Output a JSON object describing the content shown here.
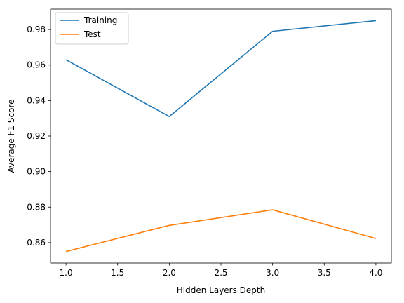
{
  "chart_data": {
    "type": "line",
    "title": "",
    "xlabel": "Hidden Layers Depth",
    "ylabel": "Average F1 Score",
    "xlim": [
      0.85,
      4.15
    ],
    "ylim": [
      0.8485,
      0.9915
    ],
    "x_ticks": [
      1.0,
      1.5,
      2.0,
      2.5,
      3.0,
      3.5,
      4.0
    ],
    "x_tick_labels": [
      "1.0",
      "1.5",
      "2.0",
      "2.5",
      "3.0",
      "3.5",
      "4.0"
    ],
    "y_ticks": [
      0.86,
      0.88,
      0.9,
      0.92,
      0.94,
      0.96,
      0.98
    ],
    "y_tick_labels": [
      "0.86",
      "0.88",
      "0.90",
      "0.92",
      "0.94",
      "0.96",
      "0.98"
    ],
    "grid": false,
    "legend": "top-left",
    "x": [
      1,
      2,
      3,
      4
    ],
    "series": [
      {
        "name": "Training",
        "color": "#1f77b4",
        "values": [
          0.963,
          0.931,
          0.979,
          0.985
        ]
      },
      {
        "name": "Test",
        "color": "#ff7f0e",
        "values": [
          0.855,
          0.8697,
          0.8785,
          0.8623
        ]
      }
    ]
  }
}
